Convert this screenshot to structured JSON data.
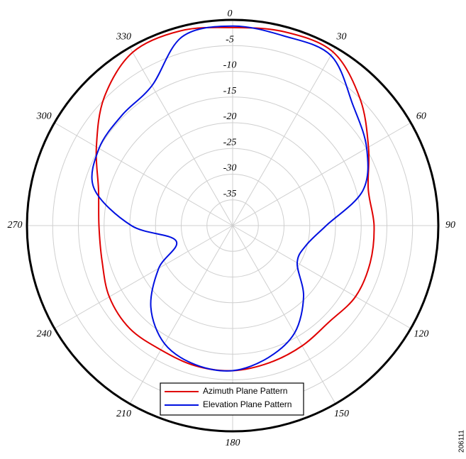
{
  "chart_data": {
    "type": "polar",
    "theta": [
      0,
      15,
      30,
      45,
      60,
      75,
      90,
      105,
      120,
      135,
      150,
      165,
      180,
      195,
      210,
      225,
      240,
      255,
      270,
      285,
      300,
      315,
      330,
      345
    ],
    "series": [
      {
        "name": "Azimuth Plane Pattern",
        "color": "#e00000",
        "values": [
          -1.5,
          -1.0,
          -1.0,
          -5.0,
          -9.5,
          -12.7,
          -12.5,
          -12.3,
          -12.4,
          -13.5,
          -13.0,
          -12.4,
          -11.8,
          -11.8,
          -12.1,
          -11.7,
          -12.3,
          -13.7,
          -14.0,
          -13.0,
          -9.4,
          -4.7,
          -1.1,
          -0.8
        ]
      },
      {
        "name": "Elevation Plane Pattern",
        "color": "#0010e0",
        "values": [
          -1.2,
          -1.8,
          -1.8,
          -6.9,
          -9.9,
          -13.8,
          -21.8,
          -25.2,
          -25.5,
          -20.5,
          -15.9,
          -13.4,
          -11.8,
          -12.0,
          -13.5,
          -17.5,
          -23.4,
          -28.6,
          -20.3,
          -12.1,
          -10.0,
          -9.6,
          -8.6,
          -2.0
        ]
      }
    ],
    "rlim": [
      -40,
      0
    ],
    "rticks": [
      0,
      -5,
      -10,
      -15,
      -20,
      -25,
      -30,
      -35
    ],
    "angle_ticks": [
      0,
      30,
      60,
      90,
      120,
      150,
      180,
      210,
      240,
      270,
      300,
      330
    ],
    "grid": true,
    "legend": "bottom",
    "figure_id": "206111"
  }
}
